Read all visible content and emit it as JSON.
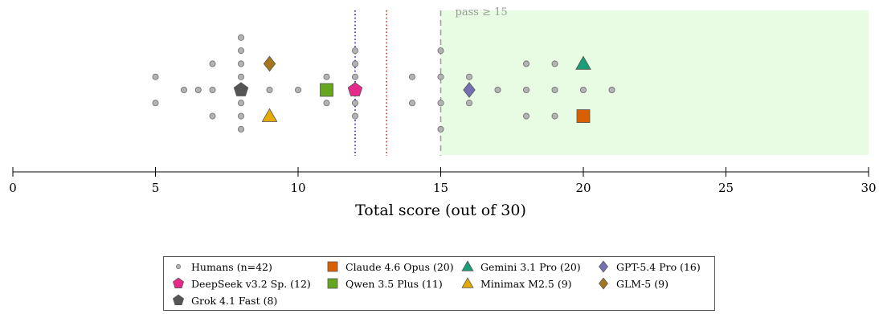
{
  "chart_data": {
    "type": "scatter",
    "title": "",
    "xlabel": "Total score (out of 30)",
    "xlim": [
      0,
      30
    ],
    "xticks": [
      0,
      5,
      10,
      15,
      20,
      25,
      30
    ],
    "pass_threshold": 15,
    "pass_label": "pass ≥ 15",
    "pass_region_color": "#e8fbe3",
    "reference_lines": [
      {
        "x": 12.0,
        "color": "#1f1fcf",
        "style": "dotted"
      },
      {
        "x": 13.1,
        "color": "#c0392b",
        "style": "dotted"
      },
      {
        "x": 15.0,
        "color": "#9e9e9e",
        "style": "dashed"
      }
    ],
    "humans": {
      "name": "Humans (n=42)",
      "color": "#b3b3b3",
      "scores": [
        5,
        5,
        6,
        6.5,
        7,
        7,
        7,
        8,
        8,
        8,
        8,
        8,
        8,
        8,
        9,
        9,
        9,
        10,
        11,
        11,
        12,
        12,
        12,
        12,
        12,
        14,
        14,
        15,
        15,
        15,
        15,
        16,
        16,
        17,
        18,
        18,
        18,
        19,
        19,
        19,
        20,
        21
      ]
    },
    "models": [
      {
        "name": "DeepSeek v3.2 Sp. (12)",
        "score": 12,
        "marker": "pentagon",
        "color": "#e7298a"
      },
      {
        "name": "Grok 4.1 Fast (8)",
        "score": 8,
        "marker": "pentagon",
        "color": "#555555"
      },
      {
        "name": "Claude 4.6 Opus (20)",
        "score": 20,
        "marker": "square",
        "color": "#d95f02"
      },
      {
        "name": "Qwen 3.5 Plus (11)",
        "score": 11,
        "marker": "square",
        "color": "#66a61e"
      },
      {
        "name": "Gemini 3.1 Pro (20)",
        "score": 20,
        "marker": "triangle",
        "color": "#1b9e77"
      },
      {
        "name": "Minimax M2.5 (9)",
        "score": 9,
        "marker": "triangle",
        "color": "#e6ab02"
      },
      {
        "name": "GPT-5.4 Pro (16)",
        "score": 16,
        "marker": "diamond",
        "color": "#7570b3"
      },
      {
        "name": "GLM-5 (9)",
        "score": 9,
        "marker": "diamond",
        "color": "#a6761d"
      }
    ],
    "legend_placement": "bottom",
    "grid": false
  }
}
